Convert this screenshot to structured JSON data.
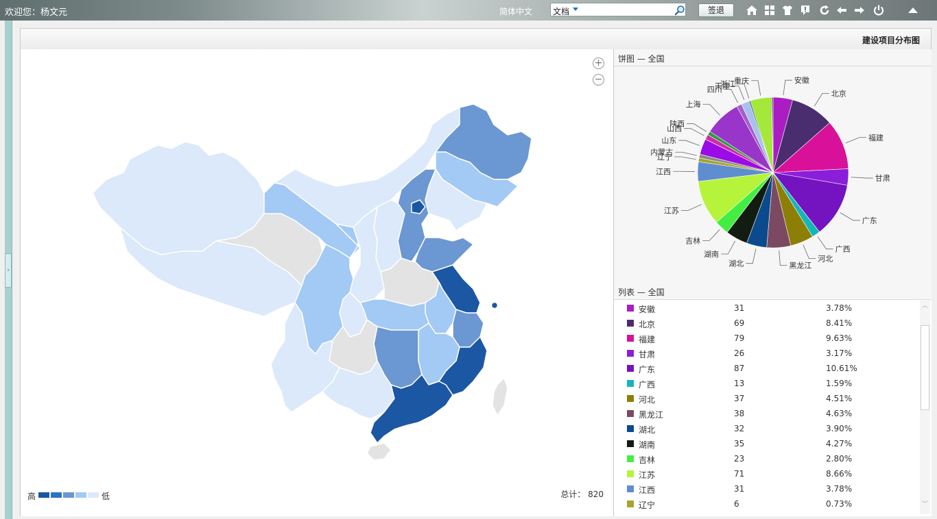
{
  "topbar": {
    "welcome": "欢迎您：杨文元",
    "language": "简体中文",
    "search_type": "文档",
    "search_value": "",
    "logout_label": "签退",
    "icons": [
      "home-icon",
      "grid-icon",
      "shirt-icon",
      "alert-icon",
      "refresh-icon",
      "back-icon",
      "forward-icon",
      "power-icon",
      "collapse-up-icon"
    ]
  },
  "panel": {
    "title": "建设项目分布图"
  },
  "map": {
    "zoom_in": "+",
    "zoom_out": "−",
    "legend_high": "高",
    "legend_low": "低",
    "legend_colors": [
      "#1b57a3",
      "#2a74c8",
      "#6b97d3",
      "#a3c9f5",
      "#dbe9fa"
    ],
    "total_label": "总计：",
    "total_value": "820",
    "colors": {
      "level1": "#1b57a3",
      "level2": "#6b97d3",
      "level3": "#a3c9f5",
      "level4": "#dbe9fa",
      "none": "#e3e3e3"
    }
  },
  "pie": {
    "title": "饼图 — 全国"
  },
  "list": {
    "title": "列表 — 全国"
  },
  "chart_data": {
    "type": "pie",
    "title": "",
    "series": [
      {
        "name": "安徽",
        "value": 31,
        "percent": "3.78%",
        "color": "#a91dc2"
      },
      {
        "name": "北京",
        "value": 69,
        "percent": "8.41%",
        "color": "#4a2d6e"
      },
      {
        "name": "福建",
        "value": 79,
        "percent": "9.63%",
        "color": "#d9109a"
      },
      {
        "name": "甘肃",
        "value": 26,
        "percent": "3.17%",
        "color": "#8a1ed9"
      },
      {
        "name": "广东",
        "value": 87,
        "percent": "10.61%",
        "color": "#7413c0"
      },
      {
        "name": "广西",
        "value": 13,
        "percent": "1.59%",
        "color": "#14b7b8"
      },
      {
        "name": "河北",
        "value": 37,
        "percent": "4.51%",
        "color": "#8d7f06"
      },
      {
        "name": "黑龙江",
        "value": 38,
        "percent": "4.63%",
        "color": "#7c4a60"
      },
      {
        "name": "湖北",
        "value": 32,
        "percent": "3.90%",
        "color": "#0b4a8c"
      },
      {
        "name": "湖南",
        "value": 35,
        "percent": "4.27%",
        "color": "#121c10"
      },
      {
        "name": "吉林",
        "value": 23,
        "percent": "2.80%",
        "color": "#43ee43"
      },
      {
        "name": "江苏",
        "value": 71,
        "percent": "8.66%",
        "color": "#b5f43a"
      },
      {
        "name": "江西",
        "value": 31,
        "percent": "3.78%",
        "color": "#5f8ed0"
      },
      {
        "name": "辽宁",
        "value": 6,
        "percent": "0.73%",
        "color": "#a8a42e"
      },
      {
        "name": "内蒙古",
        "value": 6,
        "percent": "",
        "color": "#8a8a8a"
      },
      {
        "name": "山东",
        "value": 25,
        "percent": "",
        "color": "#9b0be6"
      },
      {
        "name": "山西",
        "value": 8,
        "percent": "",
        "color": "#d12aa8"
      },
      {
        "name": "陕西",
        "value": 6,
        "percent": "",
        "color": "#2c9c3c"
      },
      {
        "name": "上海",
        "value": 58,
        "percent": "",
        "color": "#9a35c9"
      },
      {
        "name": "四川",
        "value": 8,
        "percent": "",
        "color": "#a45fca"
      },
      {
        "name": "天津",
        "value": 13,
        "percent": "",
        "color": "#a8c1ec"
      },
      {
        "name": "浙江",
        "value": 2,
        "percent": "",
        "color": "#1a4a7c"
      },
      {
        "name": "重庆",
        "value": 34,
        "percent": "",
        "color": "#a4e83a"
      },
      {
        "name": "",
        "value": 2,
        "percent": "",
        "color": "#6b2bb0"
      }
    ]
  }
}
